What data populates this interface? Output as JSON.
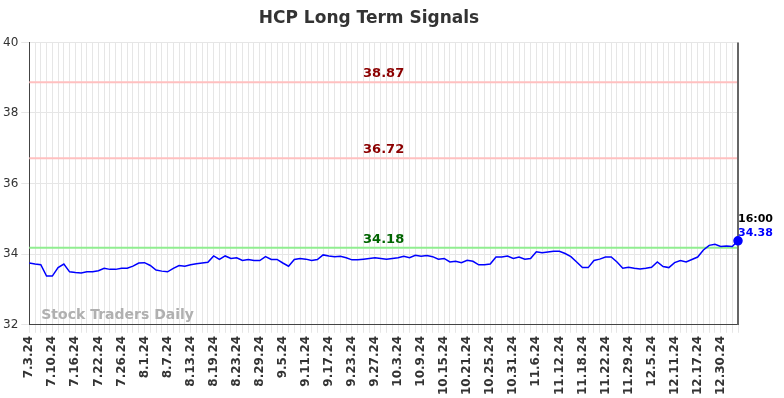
{
  "chart_data": {
    "type": "line",
    "title": "HCP Long Term Signals",
    "categories": [
      "7.3.24",
      null,
      null,
      null,
      "7.10.24",
      null,
      null,
      null,
      "7.16.24",
      null,
      null,
      null,
      "7.22.24",
      null,
      null,
      null,
      "7.26.24",
      null,
      null,
      null,
      "8.1.24",
      null,
      null,
      null,
      "8.7.24",
      null,
      null,
      null,
      "8.13.24",
      null,
      null,
      null,
      "8.19.24",
      null,
      null,
      null,
      "8.23.24",
      null,
      null,
      null,
      "8.29.24",
      null,
      null,
      null,
      "9.5.24",
      null,
      null,
      null,
      "9.11.24",
      null,
      null,
      null,
      "9.17.24",
      null,
      null,
      null,
      "9.23.24",
      null,
      null,
      null,
      "9.27.24",
      null,
      null,
      null,
      "10.3.24",
      null,
      null,
      null,
      "10.9.24",
      null,
      null,
      null,
      "10.15.24",
      null,
      null,
      null,
      "10.21.24",
      null,
      null,
      null,
      "10.25.24",
      null,
      null,
      null,
      "10.31.24",
      null,
      null,
      null,
      "11.6.24",
      null,
      null,
      null,
      "11.12.24",
      null,
      null,
      null,
      "11.18.24",
      null,
      null,
      null,
      "11.22.24",
      null,
      null,
      null,
      "11.29.24",
      null,
      null,
      null,
      "12.5.24",
      null,
      null,
      null,
      "12.11.24",
      null,
      null,
      null,
      "12.17.24",
      null,
      null,
      null,
      "12.30.24",
      null,
      null,
      null
    ],
    "values": [
      33.75,
      33.72,
      33.7,
      33.38,
      33.38,
      33.62,
      33.72,
      33.5,
      33.48,
      33.47,
      33.5,
      33.5,
      33.53,
      33.6,
      33.57,
      33.57,
      33.6,
      33.6,
      33.66,
      33.75,
      33.76,
      33.68,
      33.55,
      33.52,
      33.5,
      33.6,
      33.68,
      33.66,
      33.7,
      33.73,
      33.75,
      33.77,
      33.95,
      33.85,
      33.95,
      33.88,
      33.9,
      33.82,
      33.85,
      33.82,
      33.82,
      33.93,
      33.85,
      33.85,
      33.75,
      33.66,
      33.85,
      33.88,
      33.86,
      33.82,
      33.85,
      33.98,
      33.95,
      33.93,
      33.94,
      33.9,
      33.84,
      33.84,
      33.86,
      33.88,
      33.9,
      33.88,
      33.86,
      33.88,
      33.9,
      33.94,
      33.9,
      33.97,
      33.94,
      33.96,
      33.93,
      33.86,
      33.88,
      33.78,
      33.8,
      33.76,
      33.83,
      33.8,
      33.7,
      33.7,
      33.72,
      33.92,
      33.92,
      33.95,
      33.88,
      33.92,
      33.86,
      33.88,
      34.07,
      34.04,
      34.06,
      34.08,
      34.08,
      34.02,
      33.93,
      33.78,
      33.62,
      33.62,
      33.82,
      33.86,
      33.92,
      33.92,
      33.78,
      33.6,
      33.63,
      33.6,
      33.58,
      33.6,
      33.63,
      33.78,
      33.65,
      33.62,
      33.76,
      33.82,
      33.78,
      33.85,
      33.92,
      34.12,
      34.25,
      34.28,
      34.22,
      34.23,
      34.22,
      34.38
    ],
    "color": "#0000ff",
    "ylim": [
      32,
      40
    ],
    "yticks": [
      32,
      34,
      36,
      38,
      40
    ],
    "grid": true,
    "annotations": [
      {
        "type": "hline",
        "value": 38.87,
        "label": "38.87",
        "color": "#ffc0c0",
        "label_color": "#8b0000"
      },
      {
        "type": "hline",
        "value": 36.72,
        "label": "36.72",
        "color": "#ffc0c0",
        "label_color": "#8b0000"
      },
      {
        "type": "hline",
        "value": 34.18,
        "label": "34.18",
        "color": "#90ee90",
        "label_color": "#006400"
      },
      {
        "type": "last_point",
        "time": "16:00",
        "label": "34.38",
        "color": "#0000ff"
      },
      {
        "type": "watermark",
        "text": "Stock Traders Daily"
      }
    ]
  }
}
